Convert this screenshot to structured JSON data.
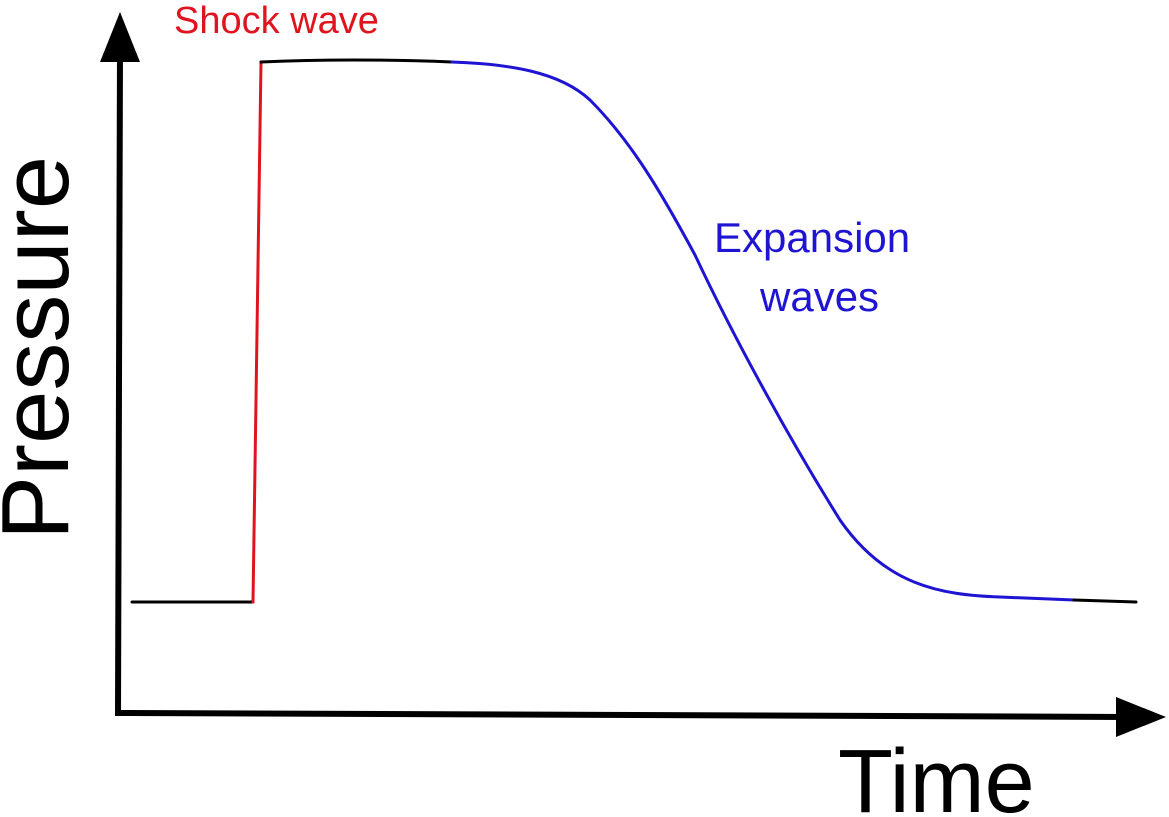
{
  "axes": {
    "y_label": "Pressure",
    "x_label": "Time"
  },
  "annotations": {
    "shock": "Shock wave",
    "expansion_line1": "Expansion",
    "expansion_line2": "waves"
  },
  "colors": {
    "axis": "#000000",
    "baseline": "#000000",
    "shock": "#e0141e",
    "expansion": "#1e14d2"
  }
}
